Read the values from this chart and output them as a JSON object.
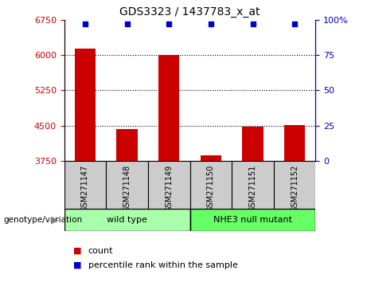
{
  "title": "GDS3323 / 1437783_x_at",
  "samples": [
    "GSM271147",
    "GSM271148",
    "GSM271149",
    "GSM271150",
    "GSM271151",
    "GSM271152"
  ],
  "bar_values": [
    6130,
    4420,
    6000,
    3870,
    4470,
    4510
  ],
  "percentile_values": [
    100,
    100,
    100,
    100,
    100,
    100
  ],
  "bar_color": "#cc0000",
  "percentile_color": "#0000cc",
  "ylim_left": [
    3750,
    6750
  ],
  "yticks_left": [
    3750,
    4500,
    5250,
    6000,
    6750
  ],
  "ylim_right": [
    0,
    100
  ],
  "yticks_right": [
    0,
    25,
    50,
    75,
    100
  ],
  "ytick_labels_right": [
    "0",
    "25",
    "50",
    "75",
    "100%"
  ],
  "groups": [
    {
      "label": "wild type",
      "indices": [
        0,
        1,
        2
      ],
      "color": "#aaffaa"
    },
    {
      "label": "NHE3 null mutant",
      "indices": [
        3,
        4,
        5
      ],
      "color": "#66ff66"
    }
  ],
  "group_label": "genotype/variation",
  "legend_count_label": "count",
  "legend_percentile_label": "percentile rank within the sample",
  "tick_color_left": "#cc0000",
  "tick_color_right": "#0000cc",
  "bar_width": 0.5,
  "sample_box_color": "#cccccc",
  "background_color": "#ffffff"
}
